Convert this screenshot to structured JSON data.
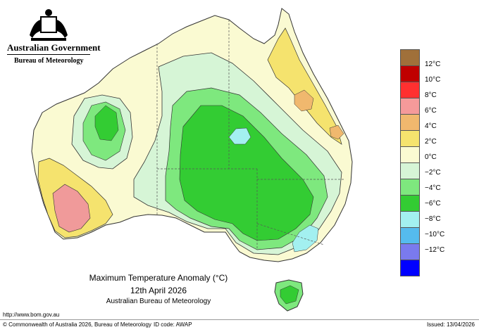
{
  "branding": {
    "government": "Australian Government",
    "bureau": "Bureau of Meteorology"
  },
  "map": {
    "title": "Maximum Temperature Anomaly (°C)",
    "date": "12th April 2026",
    "organisation": "Australian Bureau of Meteorology",
    "region": "Australia",
    "colors": {
      "cool_2_0": "#d6f5d6",
      "cool_4_2": "#7ee87e",
      "cool_6_4": "#33cc33",
      "cool_8_6": "#a3f0f0",
      "warm_0_2": "#fafad2",
      "warm_2_4": "#f5e36e",
      "warm_4_6": "#f0b86e",
      "warm_6_8": "#f09a9a",
      "ocean": "#ffffff"
    }
  },
  "legend": {
    "units": "°C",
    "labels": [
      "12°C",
      "10°C",
      "8°C",
      "6°C",
      "4°C",
      "2°C",
      "0°C",
      "−2°C",
      "−4°C",
      "−6°C",
      "−8°C",
      "−10°C",
      "−12°C"
    ],
    "colors": [
      "#a0703a",
      "#c00000",
      "#ff3030",
      "#f59a9a",
      "#f0b86e",
      "#f5e36e",
      "#fafad2",
      "#d6f5d6",
      "#7ee87e",
      "#33cc33",
      "#a3f0f0",
      "#55bbee",
      "#7a7aee",
      "#0000ff"
    ]
  },
  "footer": {
    "url": "http://www.bom.gov.au",
    "copyright": "© Commonwealth of Australia 2026, Bureau of Meteorology",
    "id_code": "ID code: AWAP",
    "issued": "Issued: 13/04/2026"
  }
}
